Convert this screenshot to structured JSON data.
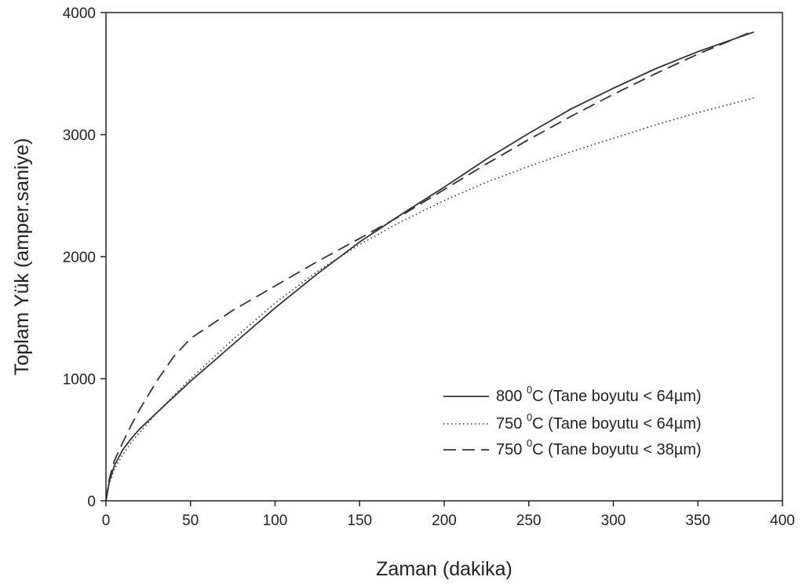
{
  "chart_data": {
    "type": "line",
    "title": "",
    "xlabel": "Zaman (dakika)",
    "ylabel": "Toplam Yük (amper.saniye)",
    "xlim": [
      0,
      400
    ],
    "ylim": [
      0,
      4000
    ],
    "xticks": [
      "0",
      "50",
      "100",
      "150",
      "200",
      "250",
      "300",
      "350",
      "400"
    ],
    "yticks": [
      "0",
      "1000",
      "2000",
      "3000",
      "4000"
    ],
    "grid": false,
    "legend_position": "bottom-right",
    "series": [
      {
        "name": "800 °C (Tane boyutu < 64µm)",
        "legend_parts": {
          "value": "800 ",
          "sup": "0",
          "rest": "C (Tane boyutu < 64",
          "mu": "µ",
          "end": "m)"
        },
        "style": "solid",
        "color": "#333333",
        "x": [
          0,
          2,
          5,
          10,
          15,
          20,
          30,
          40,
          50,
          75,
          100,
          125,
          150,
          175,
          200,
          225,
          250,
          275,
          300,
          325,
          350,
          383
        ],
        "y": [
          0,
          160,
          290,
          420,
          510,
          590,
          720,
          850,
          980,
          1280,
          1580,
          1860,
          2120,
          2350,
          2570,
          2800,
          3010,
          3210,
          3380,
          3540,
          3680,
          3840
        ]
      },
      {
        "name": "750 °C (Tane boyutu < 64µm)",
        "legend_parts": {
          "value": "750 ",
          "sup": "0",
          "rest": "C (Tane boyutu < 64",
          "mu": "µ",
          "end": "m)"
        },
        "style": "dotted",
        "color": "#333333",
        "x": [
          0,
          2,
          5,
          10,
          15,
          20,
          30,
          40,
          50,
          75,
          100,
          125,
          150,
          175,
          200,
          225,
          250,
          275,
          300,
          325,
          350,
          383
        ],
        "y": [
          0,
          140,
          260,
          380,
          480,
          560,
          720,
          860,
          1000,
          1320,
          1620,
          1880,
          2100,
          2290,
          2460,
          2610,
          2740,
          2860,
          2970,
          3080,
          3180,
          3300
        ]
      },
      {
        "name": "750 °C (Tane boyutu < 38µm)",
        "legend_parts": {
          "value": "750 ",
          "sup": "0",
          "rest": "C (Tane boyutu < 38",
          "mu": "µ",
          "end": "m)"
        },
        "style": "dashed",
        "color": "#333333",
        "x": [
          0,
          2,
          5,
          10,
          15,
          20,
          30,
          40,
          50,
          75,
          100,
          125,
          150,
          175,
          200,
          225,
          250,
          275,
          300,
          325,
          350,
          383
        ],
        "y": [
          0,
          180,
          330,
          480,
          620,
          750,
          980,
          1180,
          1330,
          1560,
          1760,
          1960,
          2150,
          2340,
          2550,
          2760,
          2960,
          3150,
          3330,
          3500,
          3660,
          3850
        ]
      }
    ]
  }
}
